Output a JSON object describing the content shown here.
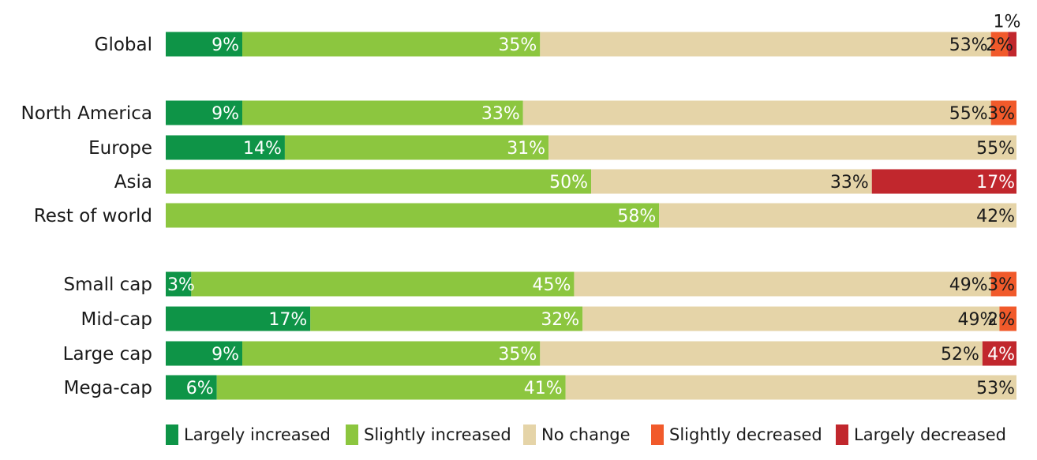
{
  "chart_data": {
    "type": "bar",
    "orientation": "horizontal",
    "stacked": true,
    "percent_stacked": true,
    "xlim": [
      0,
      100
    ],
    "legend_position": "bottom",
    "grid": false,
    "categories": [
      "Global",
      "North America",
      "Europe",
      "Asia",
      "Rest of world",
      "Small cap",
      "Mid-cap",
      "Large cap",
      "Mega-cap"
    ],
    "groups": [
      [
        0
      ],
      [
        1,
        2,
        3,
        4
      ],
      [
        5,
        6,
        7,
        8
      ]
    ],
    "series": [
      {
        "name": "Largely increased",
        "color": "#0e9447",
        "values": [
          9,
          9,
          14,
          0,
          0,
          3,
          17,
          9,
          6
        ]
      },
      {
        "name": "Slightly increased",
        "color": "#8cc63f",
        "values": [
          35,
          33,
          31,
          50,
          58,
          45,
          32,
          35,
          41
        ]
      },
      {
        "name": "No change",
        "color": "#e5d4a8",
        "values": [
          53,
          55,
          55,
          33,
          42,
          49,
          49,
          52,
          53
        ]
      },
      {
        "name": "Slightly decreased",
        "color": "#f15a2b",
        "values": [
          2,
          3,
          0,
          0,
          0,
          3,
          2,
          0,
          0
        ]
      },
      {
        "name": "Largely decreased",
        "color": "#c1272d",
        "values": [
          1,
          0,
          0,
          17,
          0,
          0,
          0,
          4,
          0
        ]
      }
    ]
  }
}
